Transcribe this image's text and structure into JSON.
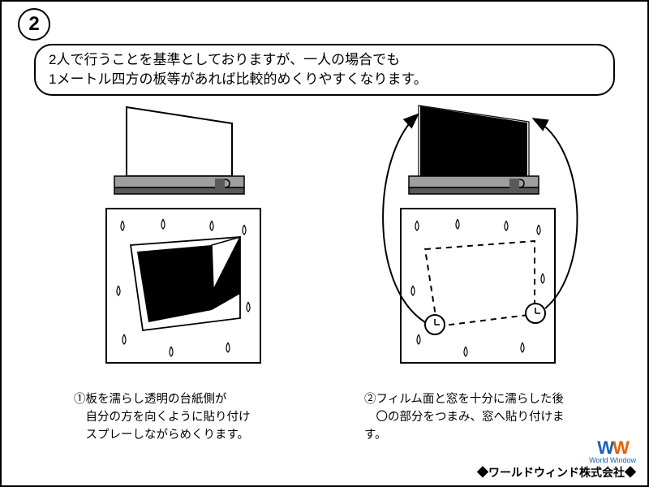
{
  "step_number": "2",
  "banner_text": "2人で行うことを基準としておりますが、一人の場合でも\n1メートル四方の板等があれば比較的めくりやすくなります。",
  "left": {
    "caption": "①板を濡らし透明の台紙側が\n　自分の方を向くように貼り付け\n　スプレーしながらめくります。"
  },
  "right": {
    "caption": "②フィルム面と窓を十分に濡らした後\n　〇の部分をつまみ、窓へ貼り付けます。"
  },
  "footer": "◆ワールドウィンド株式会社◆",
  "logo_brand": "World Window",
  "colors": {
    "stroke": "#000000",
    "fill_dark": "#000000",
    "board_gray": "#9e9e9e",
    "board_darkgray": "#595959",
    "logo_blue": "#1a5fb4",
    "logo_orange": "#e66100"
  }
}
